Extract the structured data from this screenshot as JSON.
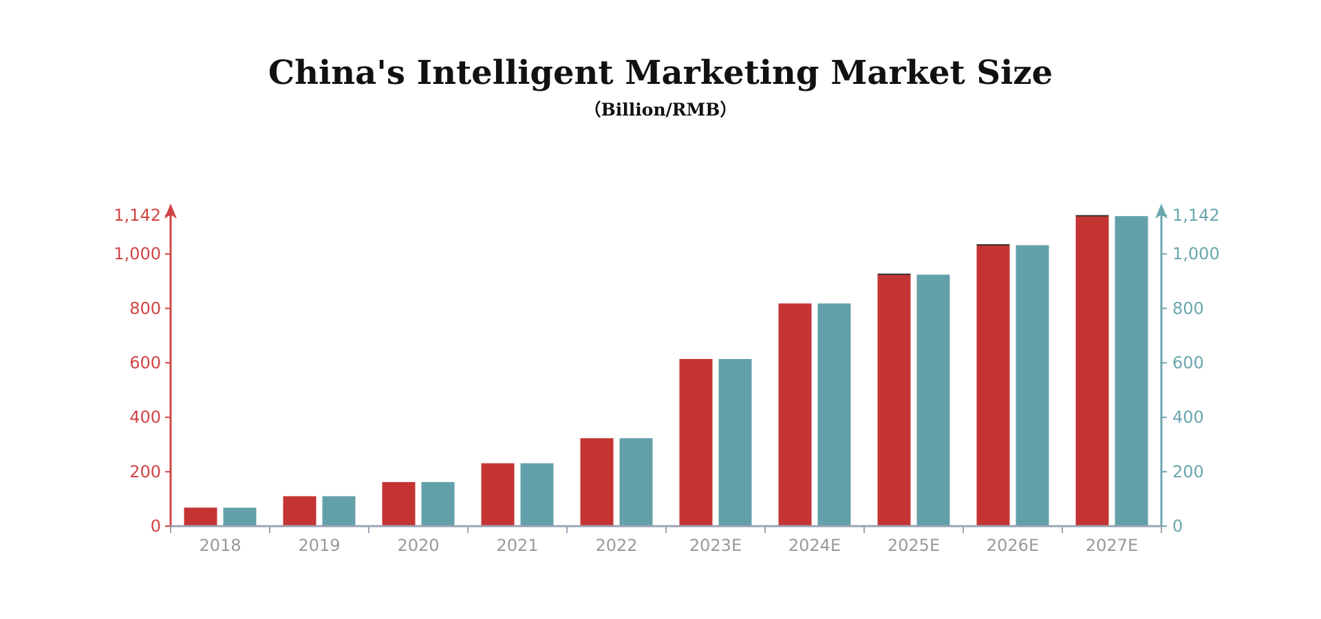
{
  "chart_data": {
    "type": "bar",
    "title": "China's Intelligent Marketing Market Size",
    "subtitle": "（Billion/RMB）",
    "xlabel": "",
    "ylabel": "",
    "categories": [
      "2018",
      "2019",
      "2020",
      "2021",
      "2022",
      "2023E",
      "2024E",
      "2025E",
      "2026E",
      "2027E"
    ],
    "series": [
      {
        "values": [
          68,
          110,
          162,
          231,
          323,
          614,
          818,
          924,
          1032,
          1139
        ]
      },
      {
        "values": [
          68,
          110,
          162,
          231,
          323,
          614,
          818,
          924,
          1032,
          1139
        ]
      }
    ],
    "ylim": [
      0,
      1142
    ],
    "yticks": [
      0,
      200,
      400,
      600,
      800,
      1000,
      1142
    ],
    "ytick_labels": [
      "0",
      "200",
      "400",
      "600",
      "800",
      "1,000",
      "1,142"
    ],
    "grid": false,
    "legend": "none",
    "colors": {
      "series_1": "#c43432",
      "series_2": "#63a1aa",
      "left_axis": "#d04444",
      "right_axis": "#6aa6ae",
      "x_axis": "#9aa3b3",
      "x_labels": "#999999"
    }
  }
}
